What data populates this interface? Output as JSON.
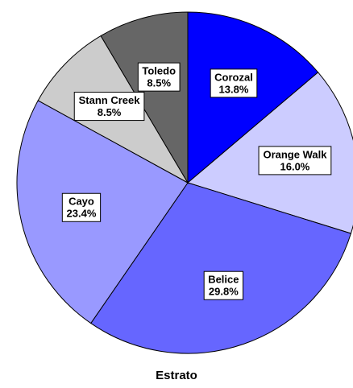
{
  "chart_data": {
    "type": "pie",
    "title": "Estrato",
    "categories": [
      "Corozal",
      "Orange Walk",
      "Belice",
      "Cayo",
      "Stann Creek",
      "Toledo"
    ],
    "values": [
      13.8,
      16.0,
      29.8,
      23.4,
      8.5,
      8.5
    ],
    "value_labels": [
      "13.8%",
      "16.0%",
      "29.8%",
      "23.4%",
      "8.5%",
      "8.5%"
    ],
    "colors": [
      "#0000ff",
      "#ccccff",
      "#6666ff",
      "#9999ff",
      "#cccccc",
      "#666666"
    ]
  }
}
